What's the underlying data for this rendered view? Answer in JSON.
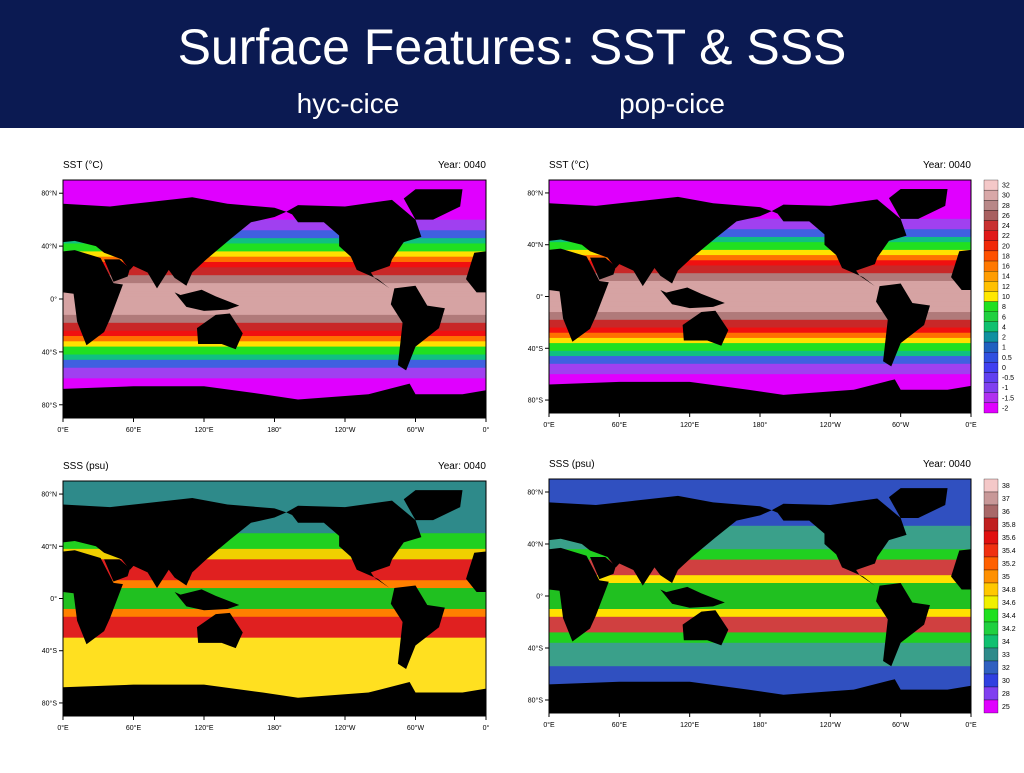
{
  "header": {
    "title": "Surface Features: SST & SSS",
    "subtitles": [
      "hyc-cice",
      "pop-cice"
    ]
  },
  "panels": [
    {
      "label": "SST (°C)",
      "year": "Year: 0040",
      "xticks": [
        "0°E",
        "60°E",
        "120°E",
        "180°",
        "120°W",
        "60°W",
        "0°"
      ],
      "yticks": [
        "80°N",
        "40°N",
        "0°",
        "40°S",
        "80°S"
      ]
    },
    {
      "label": "SST (°C)",
      "year": "Year: 0040",
      "xticks": [
        "0°E",
        "60°E",
        "120°E",
        "180°",
        "120°W",
        "60°W",
        "0°E"
      ],
      "yticks": [
        "80°N",
        "40°N",
        "0°",
        "40°S",
        "80°S"
      ]
    },
    {
      "label": "SSS (psu)",
      "year": "Year: 0040",
      "xticks": [
        "0°E",
        "60°E",
        "120°E",
        "180°",
        "120°W",
        "60°W",
        "0°"
      ],
      "yticks": [
        "80°N",
        "40°N",
        "0°",
        "40°S",
        "80°S"
      ]
    },
    {
      "label": "SSS (psu)",
      "year": "Year: 0040",
      "xticks": [
        "0°E",
        "60°E",
        "120°E",
        "180°",
        "120°W",
        "60°W",
        "0°E"
      ],
      "yticks": [
        "80°N",
        "40°N",
        "0°",
        "40°S",
        "80°S"
      ]
    }
  ],
  "colorbars": [
    {
      "labels": [
        "32",
        "30",
        "28",
        "26",
        "24",
        "22",
        "20",
        "18",
        "16",
        "14",
        "12",
        "10",
        "8",
        "6",
        "4",
        "2",
        "1",
        "0.5",
        "0",
        "-0.5",
        "-1",
        "-1.5",
        "-2"
      ]
    },
    {
      "labels": [
        "38",
        "37",
        "36",
        "35.8",
        "35.6",
        "35.4",
        "35.2",
        "35",
        "34.8",
        "34.6",
        "34.4",
        "34.2",
        "34",
        "33",
        "32",
        "30",
        "28",
        "25"
      ]
    }
  ]
}
